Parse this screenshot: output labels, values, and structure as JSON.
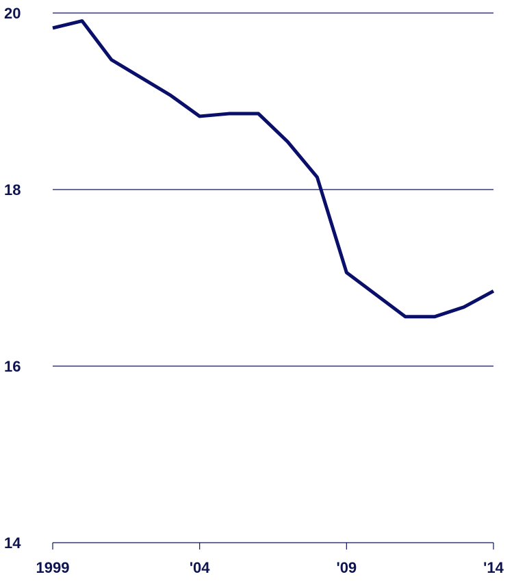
{
  "chart_data": {
    "type": "line",
    "x": [
      1999,
      2000,
      2001,
      2002,
      2003,
      2004,
      2005,
      2006,
      2007,
      2008,
      2009,
      2010,
      2011,
      2012,
      2013,
      2014
    ],
    "series": [
      {
        "color": "#0a0f6a",
        "values": [
          19.83,
          19.91,
          19.47,
          19.27,
          19.07,
          18.83,
          18.86,
          18.86,
          18.54,
          18.14,
          17.06,
          16.81,
          16.56,
          16.56,
          16.67,
          16.85
        ]
      }
    ],
    "xlim": [
      1999,
      2014
    ],
    "xticks": [
      1999,
      {
        "value": 2004,
        "label": "'04"
      },
      {
        "value": 2009,
        "label": "'09"
      },
      {
        "value": 2014,
        "label": "'14"
      }
    ],
    "ylim": [
      14,
      20
    ],
    "yticks": [
      14,
      16,
      18,
      20
    ],
    "grid": true
  }
}
